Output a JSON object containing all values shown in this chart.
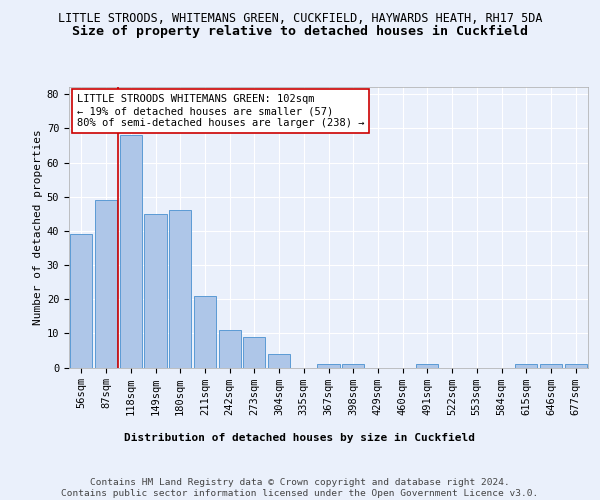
{
  "title1": "LITTLE STROODS, WHITEMANS GREEN, CUCKFIELD, HAYWARDS HEATH, RH17 5DA",
  "title2": "Size of property relative to detached houses in Cuckfield",
  "xlabel": "Distribution of detached houses by size in Cuckfield",
  "ylabel": "Number of detached properties",
  "categories": [
    "56sqm",
    "87sqm",
    "118sqm",
    "149sqm",
    "180sqm",
    "211sqm",
    "242sqm",
    "273sqm",
    "304sqm",
    "335sqm",
    "367sqm",
    "398sqm",
    "429sqm",
    "460sqm",
    "491sqm",
    "522sqm",
    "553sqm",
    "584sqm",
    "615sqm",
    "646sqm",
    "677sqm"
  ],
  "values": [
    39,
    49,
    68,
    45,
    46,
    21,
    11,
    9,
    4,
    0,
    1,
    1,
    0,
    0,
    1,
    0,
    0,
    0,
    1,
    1,
    1
  ],
  "bar_color": "#aec6e8",
  "bar_edge_color": "#5b9bd5",
  "vline_x": 1.5,
  "vline_color": "#cc0000",
  "annotation_text": "LITTLE STROODS WHITEMANS GREEN: 102sqm\n← 19% of detached houses are smaller (57)\n80% of semi-detached houses are larger (238) →",
  "annotation_box_color": "white",
  "annotation_box_edge": "#cc0000",
  "ylim": [
    0,
    82
  ],
  "yticks": [
    0,
    10,
    20,
    30,
    40,
    50,
    60,
    70,
    80
  ],
  "footer": "Contains HM Land Registry data © Crown copyright and database right 2024.\nContains public sector information licensed under the Open Government Licence v3.0.",
  "bg_color": "#eaf0fb",
  "plot_bg_color": "#eaf0fb",
  "grid_color": "#ffffff",
  "title1_fontsize": 8.5,
  "title2_fontsize": 9.5,
  "axis_label_fontsize": 8,
  "tick_fontsize": 7.5,
  "annotation_fontsize": 7.5,
  "footer_fontsize": 6.8
}
